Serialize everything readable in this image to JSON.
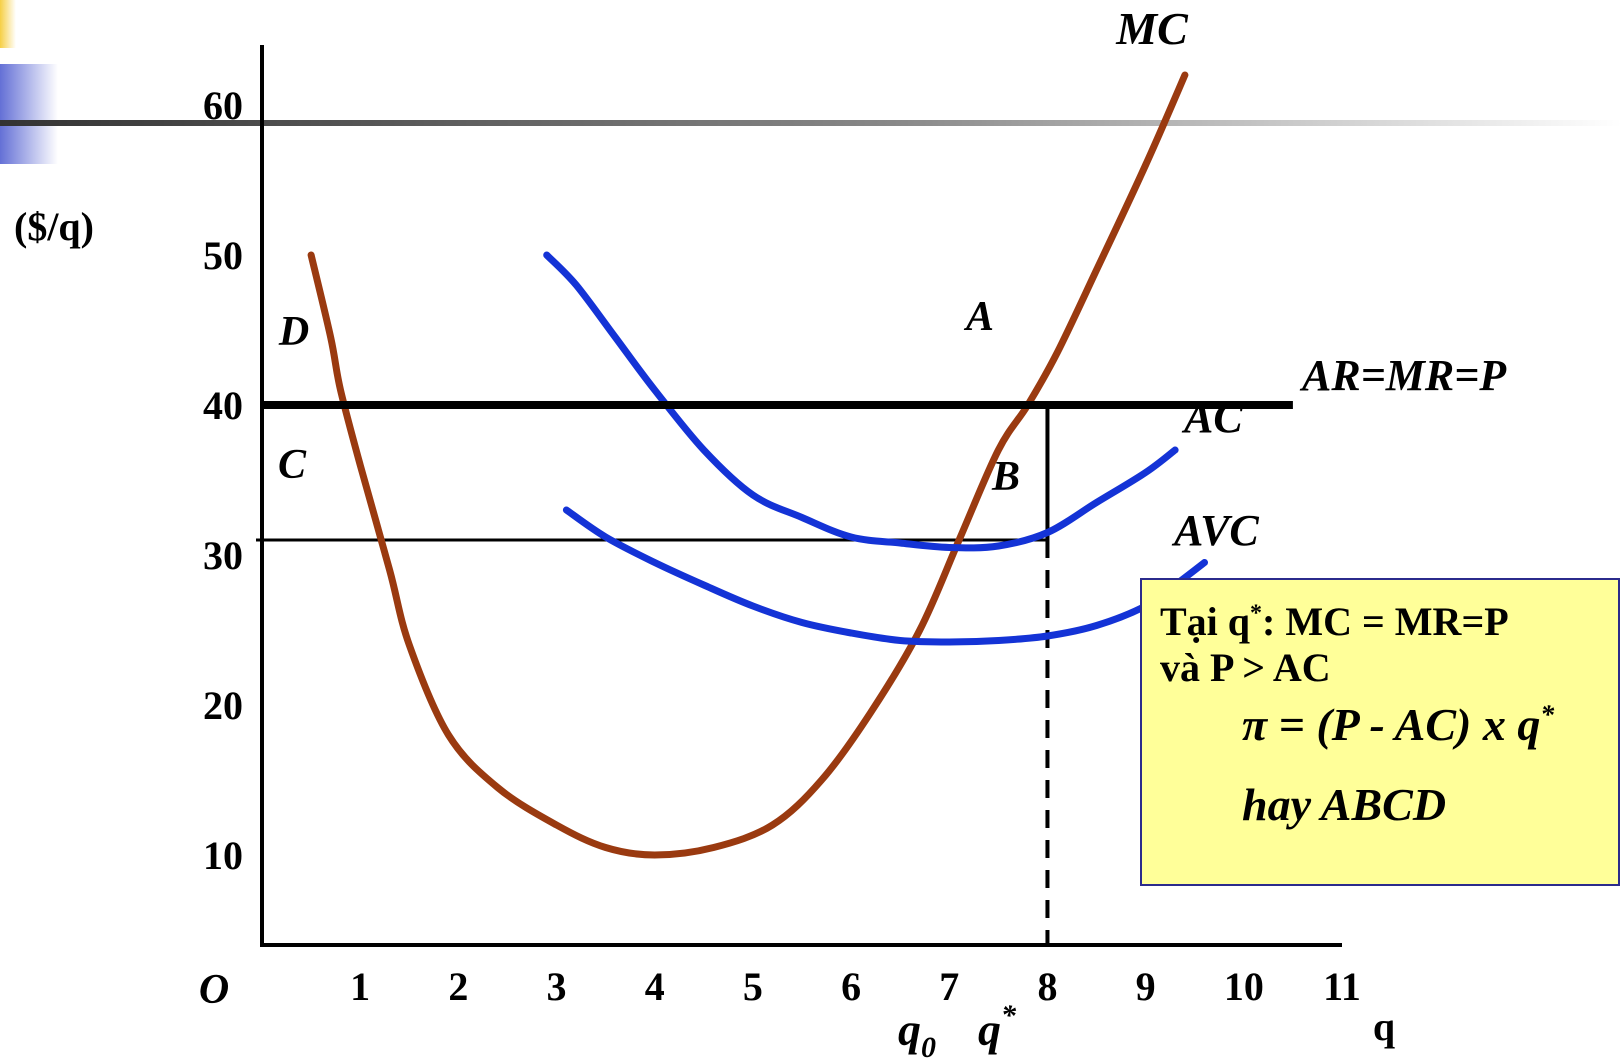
{
  "colors": {
    "mc": "#9a3a10",
    "cost_curves": "#1433d6",
    "axis": "#000000",
    "box_fill": "#ffff99",
    "box_border": "#2b2b8c"
  },
  "chart_data": {
    "type": "line",
    "ylabel": "($/q)",
    "xlabel": "q",
    "origin_label": "O",
    "xlim": [
      0,
      11
    ],
    "ylim": [
      4,
      63
    ],
    "x_ticks": [
      1,
      2,
      3,
      4,
      5,
      6,
      7,
      8,
      9,
      10,
      11
    ],
    "y_ticks": [
      10,
      20,
      30,
      40,
      50,
      60
    ],
    "extra_x_labels": {
      "q0": "q",
      "q0_sub": "0",
      "qstar": "q",
      "qstar_sup": "*"
    },
    "series": [
      {
        "name": "MC",
        "x": [
          0.5,
          0.7,
          0.8,
          1.0,
          1.3,
          1.5,
          1.9,
          2.4,
          3.0,
          3.5,
          4.0,
          4.6,
          5.2,
          5.7,
          6.2,
          6.7,
          7.1,
          7.5,
          7.8,
          8.1,
          8.5,
          9.0,
          9.4
        ],
        "y": [
          50,
          44.5,
          41,
          36,
          29,
          24,
          18,
          14.5,
          12,
          10.5,
          10,
          10.5,
          12,
          15,
          19.5,
          25,
          31,
          37,
          40,
          43.5,
          49,
          56,
          62
        ]
      },
      {
        "name": "AC",
        "x": [
          2.9,
          3.2,
          3.6,
          4.0,
          4.5,
          5.0,
          5.5,
          6.0,
          6.5,
          7.0,
          7.5,
          8.0,
          8.5,
          9.0,
          9.3
        ],
        "y": [
          50,
          48,
          44.5,
          41,
          37,
          34,
          32.5,
          31.2,
          30.8,
          30.5,
          30.6,
          31.5,
          33.5,
          35.5,
          37
        ]
      },
      {
        "name": "AVC",
        "x": [
          3.1,
          3.5,
          4.0,
          4.5,
          5.0,
          5.5,
          6.0,
          6.5,
          7.0,
          7.5,
          8.0,
          8.5,
          9.0,
          9.3,
          9.6
        ],
        "y": [
          33,
          31.2,
          29.5,
          28,
          26.6,
          25.5,
          24.8,
          24.3,
          24.2,
          24.3,
          24.6,
          25.3,
          26.6,
          28,
          29.5
        ]
      },
      {
        "name": "AR=MR=P",
        "x": [
          0,
          10.5
        ],
        "y": [
          40,
          40
        ]
      }
    ],
    "annotations": {
      "A": "A",
      "B": "B",
      "C": "C",
      "D": "D",
      "MC": "MC",
      "AC": "AC",
      "AVC": "AVC",
      "price_line": "AR=MR=P"
    },
    "price": 40,
    "ac_at_qstar": 31,
    "qstar": 8
  },
  "infobox": {
    "l1_prefix": "Tại q",
    "l1_sup": "*",
    "l1_suffix": ": MC = MR=P",
    "l2": "và P > AC",
    "l3_prefix": "π = (P - AC) x q",
    "l3_sup": "*",
    "l4": "hay ABCD"
  }
}
